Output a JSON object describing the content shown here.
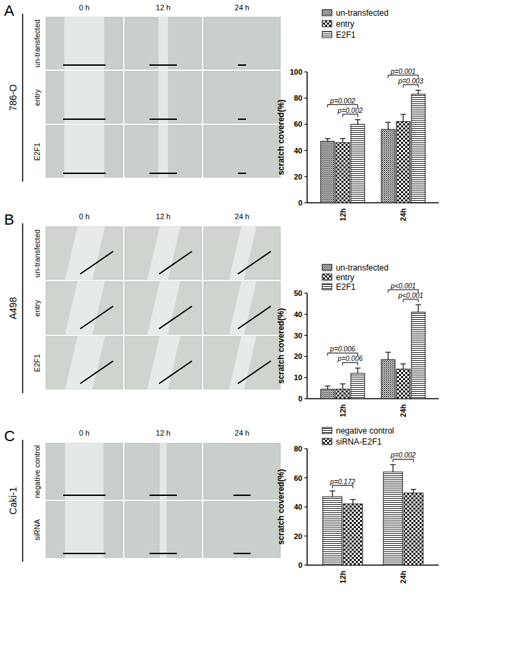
{
  "panels": [
    {
      "label": "A",
      "cell_line": "786-O",
      "times": [
        "0 h",
        "12 h",
        "24 h"
      ],
      "rows": [
        "un-transfected",
        "entry",
        "E2F1"
      ]
    },
    {
      "label": "B",
      "cell_line": "A498",
      "times": [
        "0 h",
        "12 h",
        "24 h"
      ],
      "rows": [
        "un-transfected",
        "entry",
        "E2F1"
      ]
    },
    {
      "label": "C",
      "cell_line": "Caki-1",
      "times": [
        "0 h",
        "12 h",
        "24 h"
      ],
      "rows": [
        "negative control",
        "siRNA"
      ]
    }
  ],
  "chart_data": [
    {
      "type": "bar",
      "y_label": "scratch covered(%)",
      "categories": [
        "12h",
        "24h"
      ],
      "series": [
        {
          "name": "un-transfected",
          "color": "#1a1a1a",
          "values": [
            47,
            56
          ],
          "errors": [
            2,
            5.5
          ]
        },
        {
          "name": "entry",
          "color": "#1a1a1a",
          "values": [
            46,
            62
          ],
          "errors": [
            3,
            5.5
          ]
        },
        {
          "name": "E2F1",
          "color": "#1a1a1a",
          "values": [
            60,
            83
          ],
          "errors": [
            3.5,
            3
          ]
        }
      ],
      "ylim": [
        0,
        100
      ],
      "yticks": [
        0,
        20,
        40,
        60,
        80,
        100
      ],
      "annotations": [
        {
          "text": "p=0.002",
          "category": 0,
          "from": 0,
          "to": 2
        },
        {
          "text": "p=0.002",
          "category": 0,
          "from": 1,
          "to": 2
        },
        {
          "text": "p=0.001",
          "category": 1,
          "from": 0,
          "to": 2
        },
        {
          "text": "p=0.003",
          "category": 1,
          "from": 1,
          "to": 2
        }
      ]
    },
    {
      "type": "bar",
      "y_label": "scratch covered(%)",
      "categories": [
        "12h",
        "24h"
      ],
      "series": [
        {
          "name": "un-transfected",
          "color": "#1a1a1a",
          "values": [
            4.5,
            18.5
          ],
          "errors": [
            1.5,
            3.5
          ]
        },
        {
          "name": "entry",
          "color": "#1a1a1a",
          "values": [
            4.5,
            14
          ],
          "errors": [
            2.5,
            2.5
          ]
        },
        {
          "name": "E2F1",
          "color": "#1a1a1a",
          "values": [
            12,
            41
          ],
          "errors": [
            2.5,
            3.5
          ]
        }
      ],
      "ylim": [
        0,
        50
      ],
      "yticks": [
        0,
        10,
        20,
        30,
        40,
        50
      ],
      "annotations": [
        {
          "text": "p=0.006",
          "category": 0,
          "from": 0,
          "to": 2
        },
        {
          "text": "p=0.006",
          "category": 0,
          "from": 1,
          "to": 2
        },
        {
          "text": "p<0.001",
          "category": 1,
          "from": 0,
          "to": 2
        },
        {
          "text": "p<0.001",
          "category": 1,
          "from": 1,
          "to": 2
        }
      ]
    },
    {
      "type": "bar",
      "y_label": "scratch covered(%)",
      "categories": [
        "12h",
        "24h"
      ],
      "series": [
        {
          "name": "negative control",
          "color": "#1a1a1a",
          "values": [
            47,
            64
          ],
          "errors": [
            4,
            5
          ]
        },
        {
          "name": "siRNA-E2F1",
          "color": "#1a1a1a",
          "values": [
            42,
            49.5
          ],
          "errors": [
            3,
            2.5
          ]
        }
      ],
      "ylim": [
        0,
        80
      ],
      "yticks": [
        0,
        20,
        40,
        60,
        80
      ],
      "annotations": [
        {
          "text": "p=0.172",
          "category": 0,
          "from": 0,
          "to": 1
        },
        {
          "text": "p=0.002",
          "category": 1,
          "from": 0,
          "to": 1
        }
      ]
    }
  ]
}
